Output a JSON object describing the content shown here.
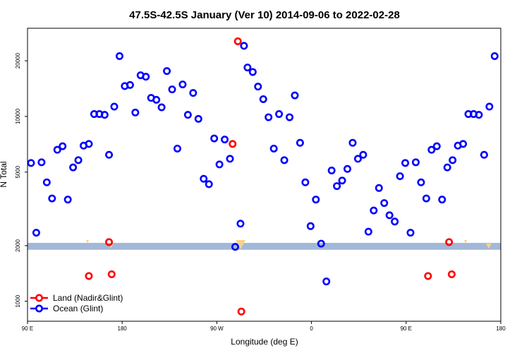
{
  "chart_data": {
    "type": "scatter",
    "title": "47.5S-42.5S January (Ver 10)   2014-09-06 to 2022-02-28",
    "xlabel": "Longitude (deg E)",
    "ylabel": "N Total",
    "y_scale": "log",
    "xlim": [
      -90,
      180
    ],
    "ylim": [
      780,
      30000
    ],
    "x_ticks": [
      {
        "value": -90,
        "label": "90 E"
      },
      {
        "value": -36,
        "label": "180"
      },
      {
        "value": 18,
        "label": "90 W"
      },
      {
        "value": 72,
        "label": "0"
      },
      {
        "value": 126,
        "label": "90 E"
      },
      {
        "value": 180,
        "label": "180"
      }
    ],
    "y_ticks": [
      {
        "value": 1000,
        "label": "1000"
      },
      {
        "value": 2000,
        "label": "2000"
      },
      {
        "value": 5000,
        "label": "5000"
      },
      {
        "value": 10000,
        "label": "10000"
      },
      {
        "value": 20000,
        "label": "20000"
      }
    ],
    "band": {
      "y_low": 1900,
      "y_high": 2070,
      "color": "#a3b8d8"
    },
    "legend": {
      "position": "bottom-left",
      "entries": [
        {
          "label": "Land (Nadir&Glint)",
          "color": "#ff0000"
        },
        {
          "label": "Ocean (Glint)",
          "color": "#0000ff"
        }
      ]
    },
    "series": [
      {
        "name": "Land (Nadir&Glint)",
        "color": "#ff0000",
        "points": [
          {
            "x": -55,
            "y": 1370
          },
          {
            "x": -43.5,
            "y": 2090
          },
          {
            "x": -42,
            "y": 1400
          },
          {
            "x": 27,
            "y": 7100
          },
          {
            "x": 30,
            "y": 25500
          },
          {
            "x": 32,
            "y": 880
          },
          {
            "x": 138.5,
            "y": 1370
          },
          {
            "x": 150.5,
            "y": 2090
          },
          {
            "x": 152,
            "y": 1400
          }
        ]
      },
      {
        "name": "Ocean (Glint)",
        "color": "#0000ff",
        "points": [
          {
            "x": -88,
            "y": 5600
          },
          {
            "x": -85,
            "y": 2350
          },
          {
            "x": -82,
            "y": 5650
          },
          {
            "x": -79,
            "y": 4400
          },
          {
            "x": -76,
            "y": 3600
          },
          {
            "x": -73,
            "y": 6600
          },
          {
            "x": -70,
            "y": 6900
          },
          {
            "x": -67,
            "y": 3550
          },
          {
            "x": -64,
            "y": 5300
          },
          {
            "x": -61,
            "y": 5800
          },
          {
            "x": -58,
            "y": 6950
          },
          {
            "x": -55,
            "y": 7100
          },
          {
            "x": -52,
            "y": 10300
          },
          {
            "x": -49,
            "y": 10300
          },
          {
            "x": -46,
            "y": 10200
          },
          {
            "x": -43.5,
            "y": 6200
          },
          {
            "x": -40.5,
            "y": 11300
          },
          {
            "x": -37.5,
            "y": 21200
          },
          {
            "x": -34.5,
            "y": 14600
          },
          {
            "x": -31.5,
            "y": 14800
          },
          {
            "x": -28.5,
            "y": 10500
          },
          {
            "x": -25.5,
            "y": 16700
          },
          {
            "x": -22.5,
            "y": 16400
          },
          {
            "x": -19.5,
            "y": 12600
          },
          {
            "x": -16.5,
            "y": 12300
          },
          {
            "x": -13.5,
            "y": 11200
          },
          {
            "x": -10.5,
            "y": 17600
          },
          {
            "x": -7.5,
            "y": 14000
          },
          {
            "x": -4.5,
            "y": 6700
          },
          {
            "x": -1.5,
            "y": 14900
          },
          {
            "x": 1.5,
            "y": 10200
          },
          {
            "x": 4.5,
            "y": 13400
          },
          {
            "x": 7.5,
            "y": 9700
          },
          {
            "x": 10.5,
            "y": 4600
          },
          {
            "x": 13.5,
            "y": 4300
          },
          {
            "x": 16.5,
            "y": 7600
          },
          {
            "x": 19.5,
            "y": 5500
          },
          {
            "x": 22.5,
            "y": 7500
          },
          {
            "x": 25.5,
            "y": 5900
          },
          {
            "x": 28.5,
            "y": 1970
          },
          {
            "x": 31.5,
            "y": 2630
          },
          {
            "x": 33.5,
            "y": 24100
          },
          {
            "x": 35.5,
            "y": 18400
          },
          {
            "x": 38.5,
            "y": 17400
          },
          {
            "x": 41.5,
            "y": 14500
          },
          {
            "x": 44.5,
            "y": 12400
          },
          {
            "x": 47.5,
            "y": 9900
          },
          {
            "x": 50.5,
            "y": 6700
          },
          {
            "x": 53.5,
            "y": 10300
          },
          {
            "x": 56.5,
            "y": 5800
          },
          {
            "x": 59.5,
            "y": 9900
          },
          {
            "x": 62.5,
            "y": 13000
          },
          {
            "x": 65.5,
            "y": 7200
          },
          {
            "x": 68.5,
            "y": 4400
          },
          {
            "x": 71.5,
            "y": 2550
          },
          {
            "x": 74.5,
            "y": 3550
          },
          {
            "x": 77.5,
            "y": 2050
          },
          {
            "x": 80.5,
            "y": 1280
          },
          {
            "x": 83.5,
            "y": 5100
          },
          {
            "x": 86.5,
            "y": 4200
          },
          {
            "x": 89.5,
            "y": 4500
          },
          {
            "x": 92.5,
            "y": 5200
          },
          {
            "x": 95.5,
            "y": 7200
          },
          {
            "x": 98.5,
            "y": 5900
          },
          {
            "x": 101.5,
            "y": 6200
          },
          {
            "x": 104.5,
            "y": 2380
          },
          {
            "x": 107.5,
            "y": 3100
          },
          {
            "x": 110.5,
            "y": 4100
          },
          {
            "x": 113.5,
            "y": 3400
          },
          {
            "x": 116.5,
            "y": 2920
          },
          {
            "x": 119.5,
            "y": 2700
          },
          {
            "x": 122.5,
            "y": 4750
          },
          {
            "x": 125.5,
            "y": 5600
          },
          {
            "x": 128.5,
            "y": 2350
          },
          {
            "x": 131.5,
            "y": 5650
          },
          {
            "x": 134.5,
            "y": 4400
          },
          {
            "x": 137.5,
            "y": 3600
          },
          {
            "x": 140.5,
            "y": 6600
          },
          {
            "x": 143.5,
            "y": 6900
          },
          {
            "x": 146.5,
            "y": 3550
          },
          {
            "x": 149.5,
            "y": 5300
          },
          {
            "x": 152.5,
            "y": 5800
          },
          {
            "x": 155.5,
            "y": 6950
          },
          {
            "x": 158.5,
            "y": 7100
          },
          {
            "x": 161.5,
            "y": 10300
          },
          {
            "x": 164.5,
            "y": 10300
          },
          {
            "x": 167.5,
            "y": 10200
          },
          {
            "x": 170.5,
            "y": 6200
          },
          {
            "x": 173.5,
            "y": 11300
          },
          {
            "x": 176.5,
            "y": 21200
          }
        ]
      }
    ]
  }
}
